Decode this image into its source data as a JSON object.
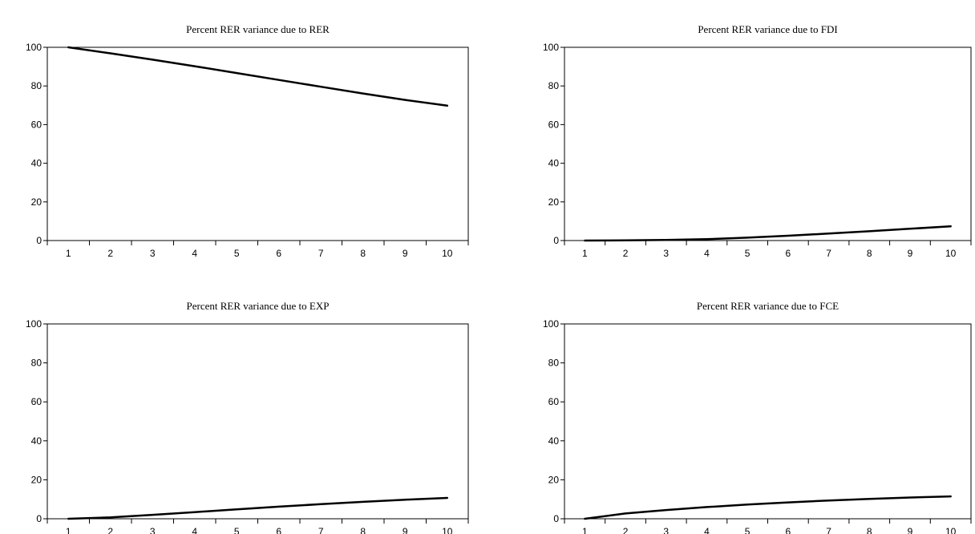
{
  "chart_data": [
    {
      "type": "line",
      "title": "Percent RER variance due to RER",
      "x": [
        1,
        2,
        3,
        4,
        5,
        6,
        7,
        8,
        9,
        10
      ],
      "series": [
        {
          "values": [
            100,
            96.9,
            93.6,
            90.2,
            86.7,
            83.1,
            79.6,
            76.1,
            72.8,
            69.8
          ]
        }
      ],
      "xlim": [
        0.5,
        10.5
      ],
      "ylim": [
        0,
        100
      ],
      "yticks": [
        0,
        20,
        40,
        60,
        80,
        100
      ],
      "grid": false
    },
    {
      "type": "line",
      "title": "Percent RER variance due to FDI",
      "x": [
        1,
        2,
        3,
        4,
        5,
        6,
        7,
        8,
        9,
        10
      ],
      "series": [
        {
          "values": [
            0,
            0.1,
            0.3,
            0.7,
            1.5,
            2.5,
            3.6,
            4.8,
            6.1,
            7.4
          ]
        }
      ],
      "xlim": [
        0.5,
        10.5
      ],
      "ylim": [
        0,
        100
      ],
      "yticks": [
        0,
        20,
        40,
        60,
        80,
        100
      ],
      "grid": false
    },
    {
      "type": "line",
      "title": "Percent RER variance due to EXP",
      "x": [
        1,
        2,
        3,
        4,
        5,
        6,
        7,
        8,
        9,
        10
      ],
      "series": [
        {
          "values": [
            0,
            0.7,
            2.0,
            3.4,
            4.8,
            6.2,
            7.5,
            8.7,
            9.8,
            10.7
          ]
        }
      ],
      "xlim": [
        0.5,
        10.5
      ],
      "ylim": [
        0,
        100
      ],
      "yticks": [
        0,
        20,
        40,
        60,
        80,
        100
      ],
      "grid": false
    },
    {
      "type": "line",
      "title": "Percent RER variance due to FCE",
      "x": [
        1,
        2,
        3,
        4,
        5,
        6,
        7,
        8,
        9,
        10
      ],
      "series": [
        {
          "values": [
            0,
            2.7,
            4.5,
            6.0,
            7.3,
            8.4,
            9.4,
            10.2,
            10.9,
            11.5
          ]
        }
      ],
      "xlim": [
        0.5,
        10.5
      ],
      "ylim": [
        0,
        100
      ],
      "yticks": [
        0,
        20,
        40,
        60,
        80,
        100
      ],
      "grid": false
    }
  ]
}
